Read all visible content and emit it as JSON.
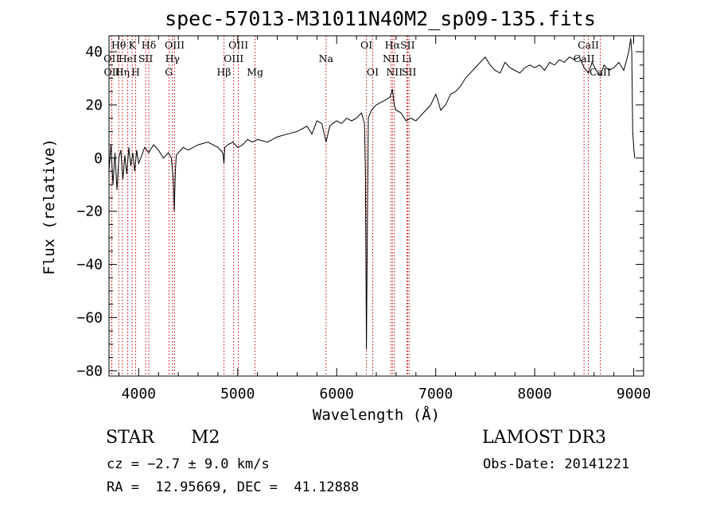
{
  "chart_data": {
    "type": "line",
    "title": "spec-57013-M31011N40M2_sp09-135.fits",
    "xlabel": "Wavelength (Å)",
    "ylabel": "Flux (relative)",
    "xlim": [
      3700,
      9100
    ],
    "ylim": [
      -82,
      46
    ],
    "xticks": [
      4000,
      5000,
      6000,
      7000,
      8000,
      9000
    ],
    "xtick_labels": [
      "4000",
      "5000",
      "6000",
      "7000",
      "8000",
      "9000"
    ],
    "yticks": [
      -80,
      -60,
      -40,
      -20,
      0,
      20,
      40
    ],
    "ytick_labels": [
      "−80",
      "−60",
      "−40",
      "−20",
      "0",
      "20",
      "40"
    ],
    "series": [
      {
        "name": "spectrum",
        "x": [
          3700,
          3720,
          3740,
          3760,
          3780,
          3800,
          3820,
          3840,
          3860,
          3880,
          3900,
          3920,
          3940,
          3960,
          3980,
          4000,
          4030,
          4060,
          4100,
          4150,
          4200,
          4250,
          4300,
          4330,
          4350,
          4360,
          4370,
          4380,
          4400,
          4450,
          4500,
          4600,
          4700,
          4800,
          4850,
          4861,
          4870,
          4900,
          4950,
          5000,
          5050,
          5100,
          5150,
          5200,
          5300,
          5400,
          5500,
          5600,
          5700,
          5750,
          5800,
          5850,
          5892,
          5930,
          5960,
          6000,
          6050,
          6100,
          6150,
          6200,
          6250,
          6280,
          6290,
          6300,
          6310,
          6320,
          6350,
          6400,
          6450,
          6500,
          6540,
          6563,
          6580,
          6600,
          6650,
          6700,
          6750,
          6800,
          6850,
          6900,
          6950,
          7000,
          7020,
          7050,
          7100,
          7150,
          7200,
          7250,
          7300,
          7350,
          7400,
          7450,
          7500,
          7550,
          7600,
          7650,
          7700,
          7750,
          7800,
          7850,
          7900,
          7950,
          8000,
          8050,
          8100,
          8150,
          8200,
          8250,
          8300,
          8350,
          8400,
          8450,
          8500,
          8542,
          8580,
          8620,
          8662,
          8700,
          8750,
          8800,
          8850,
          8900,
          8950,
          8970,
          8980,
          8990,
          9000,
          9010
        ],
        "y": [
          -5,
          5,
          -10,
          2,
          -12,
          0,
          3,
          -8,
          1,
          -6,
          4,
          -3,
          2,
          -5,
          3,
          -2,
          1,
          4,
          2,
          5,
          3,
          0,
          2,
          0,
          -8,
          -20,
          -5,
          1,
          2,
          4,
          3,
          5,
          6,
          4,
          2,
          -2,
          4,
          5,
          6,
          4,
          5,
          7,
          6,
          7,
          6,
          8,
          9,
          10,
          12,
          9,
          14,
          13,
          6,
          12,
          13,
          14,
          13,
          15,
          14,
          15,
          17,
          13,
          -5,
          -72,
          -25,
          15,
          18,
          20,
          21,
          22,
          23,
          26,
          20,
          18,
          17,
          14,
          15,
          14,
          16,
          18,
          20,
          24,
          22,
          18,
          20,
          24,
          25,
          27,
          30,
          32,
          34,
          36,
          38,
          35,
          33,
          32,
          36,
          34,
          33,
          32,
          34,
          35,
          34,
          35,
          33,
          36,
          35,
          37,
          36,
          38,
          37,
          38,
          34,
          32,
          36,
          33,
          31,
          35,
          33,
          34,
          36,
          33,
          40,
          45,
          40,
          10,
          4,
          0
        ]
      }
    ],
    "lines": [
      {
        "label": "Hθ",
        "wave": 3798,
        "row": 1
      },
      {
        "label": "OII",
        "wave": 3727,
        "row": 2
      },
      {
        "label": "OII",
        "wave": 3729,
        "row": 3
      },
      {
        "label": "K",
        "wave": 3934,
        "row": 1
      },
      {
        "label": "H",
        "wave": 3969,
        "row": 3
      },
      {
        "label": "Hη",
        "wave": 3835,
        "row": 3
      },
      {
        "label": "HeI",
        "wave": 3889,
        "row": 2
      },
      {
        "label": "SII",
        "wave": 4070,
        "row": 2
      },
      {
        "label": "Hδ",
        "wave": 4102,
        "row": 1
      },
      {
        "label": "OIII",
        "wave": 4363,
        "row": 1
      },
      {
        "label": "Hγ",
        "wave": 4341,
        "row": 2
      },
      {
        "label": "G",
        "wave": 4305,
        "row": 3
      },
      {
        "label": "OIII",
        "wave": 5007,
        "row": 1
      },
      {
        "label": "OIII",
        "wave": 4959,
        "row": 2
      },
      {
        "label": "Hβ",
        "wave": 4861,
        "row": 3
      },
      {
        "label": "Mg",
        "wave": 5175,
        "row": 3
      },
      {
        "label": "Na",
        "wave": 5892,
        "row": 2
      },
      {
        "label": "OI",
        "wave": 6300,
        "row": 1
      },
      {
        "label": "OI",
        "wave": 6364,
        "row": 3
      },
      {
        "label": "Hα",
        "wave": 6563,
        "row": 1
      },
      {
        "label": "NII",
        "wave": 6548,
        "row": 2
      },
      {
        "label": "NII",
        "wave": 6583,
        "row": 3
      },
      {
        "label": "SII",
        "wave": 6716,
        "row": 1
      },
      {
        "label": "Li",
        "wave": 6708,
        "row": 2
      },
      {
        "label": "SII",
        "wave": 6731,
        "row": 3
      },
      {
        "label": "CaII",
        "wave": 8542,
        "row": 1
      },
      {
        "label": "CaII",
        "wave": 8498,
        "row": 2
      },
      {
        "label": "CaII",
        "wave": 8662,
        "row": 3
      }
    ]
  },
  "info": {
    "object_class": "STAR",
    "subclass": "M2",
    "survey": "LAMOST DR3",
    "cz": "cz = −2.7 ± 9.0 km/s",
    "obs_date": "Obs-Date: 20141221",
    "coords": "RA =  12.95669, DEC =  41.12888"
  },
  "colors": {
    "spectrum": "#000000",
    "line_marker": "#cc0000",
    "axis": "#000000"
  }
}
